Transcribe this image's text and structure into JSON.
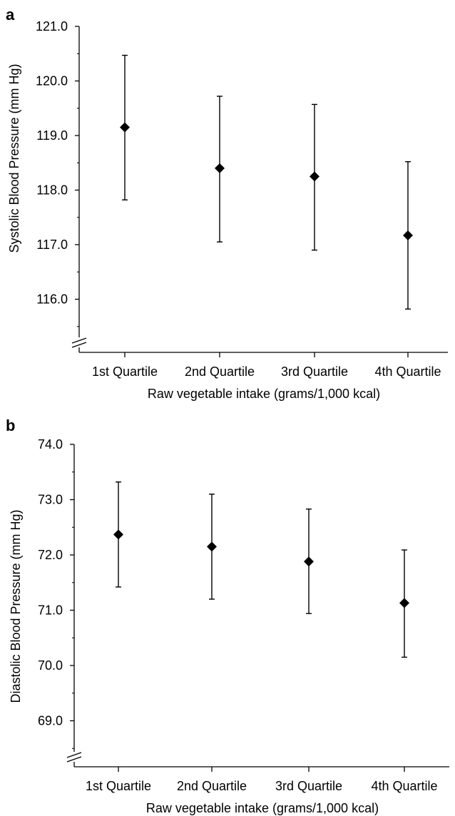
{
  "chart_data": [
    {
      "panel_label": "a",
      "type": "scatter",
      "categories": [
        "1st Quartile",
        "2nd Quartile",
        "3rd Quartile",
        "4th Quartile"
      ],
      "values": [
        119.15,
        118.4,
        118.25,
        117.17
      ],
      "error_low": [
        117.82,
        117.05,
        116.9,
        115.82
      ],
      "error_high": [
        120.47,
        119.72,
        119.57,
        118.52
      ],
      "xlabel": "Raw vegetable intake (grams/1,000 kcal)",
      "ylabel": "Systolic Blood Pressure (mm Hg)",
      "ylim": [
        115.0,
        121.0
      ],
      "yticks": [
        "121.0",
        "120.0",
        "119.0",
        "118.0",
        "117.0",
        "116.0"
      ],
      "axis_break": true,
      "marker": "diamond",
      "grid": false,
      "legend": "none"
    },
    {
      "panel_label": "b",
      "type": "scatter",
      "categories": [
        "1st Quartile",
        "2nd Quartile",
        "3rd Quartile",
        "4th Quartile"
      ],
      "values": [
        72.37,
        72.15,
        71.88,
        71.13
      ],
      "error_low": [
        71.42,
        71.2,
        70.94,
        70.15
      ],
      "error_high": [
        73.32,
        73.1,
        72.83,
        72.09
      ],
      "xlabel": "Raw vegetable intake (grams/1,000 kcal)",
      "ylabel": "Diastolic Blood Pressure (mm Hg)",
      "ylim": [
        68.0,
        74.0
      ],
      "yticks": [
        "74.0",
        "73.0",
        "72.0",
        "71.0",
        "70.0",
        "69.0"
      ],
      "axis_break": true,
      "marker": "diamond",
      "grid": false,
      "legend": "none"
    }
  ]
}
